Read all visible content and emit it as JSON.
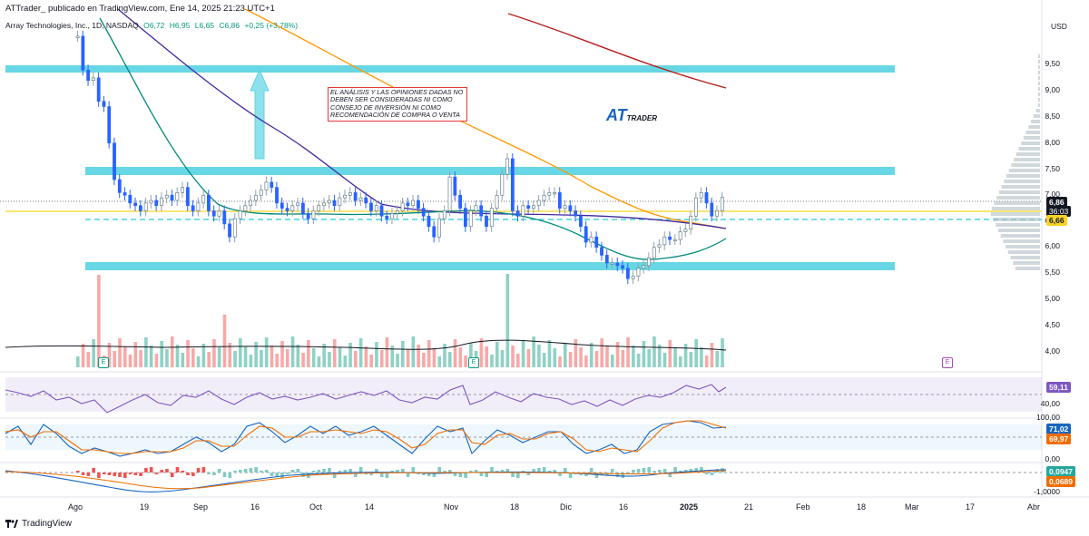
{
  "header": {
    "publisher_line": "ATTrader_ publicado en TradingView.com, Ene 14, 2025 21:23 UTC+1",
    "symbol": "Array Technologies, Inc., 1D, NASDAQ",
    "open": "O6,72",
    "high": "H6,95",
    "low": "L6,65",
    "close": "C6,86",
    "change": "+0,25 (+3,78%)"
  },
  "currency": "USD",
  "disclaimer": "EL ANÁLISIS Y LAS OPINIONES DADAS NO DEBEN SER CONSIDERADAS NI COMO CONSEJO DE INVERSIÓN NI COMO RECOMENDACIÓN DE COMPRA O VENTA",
  "logo": {
    "main": "AT",
    "sub": "TRADER"
  },
  "price_axis": [
    "9,50",
    "9,00",
    "8,50",
    "8,00",
    "7,50",
    "7,00",
    "6,50",
    "6,00",
    "5,50",
    "5,00",
    "4,50",
    "4,00"
  ],
  "price_tags": {
    "last": "6,86",
    "countdown": "36:03",
    "line": "6,66"
  },
  "rsi": {
    "value": "59,11",
    "axis": [
      "40,00"
    ]
  },
  "stoch": {
    "k": "71,02",
    "d": "69,97",
    "axis": [
      "100,00",
      "0,00"
    ]
  },
  "macd": {
    "macd": "0,0947",
    "signal": "0,0689",
    "axis": [
      "-1,0000"
    ]
  },
  "x_axis": [
    "Ago",
    "19",
    "Sep",
    "16",
    "Oct",
    "14",
    "Nov",
    "18",
    "Dic",
    "16",
    "2025",
    "21",
    "Feb",
    "18",
    "Mar",
    "17",
    "Abr"
  ],
  "earnings_badge": "E",
  "footer": "TradingView",
  "colors": {
    "up": "#089981",
    "down": "#f23645",
    "zone": "#4dd0e1",
    "accent": "#2962ff"
  }
}
